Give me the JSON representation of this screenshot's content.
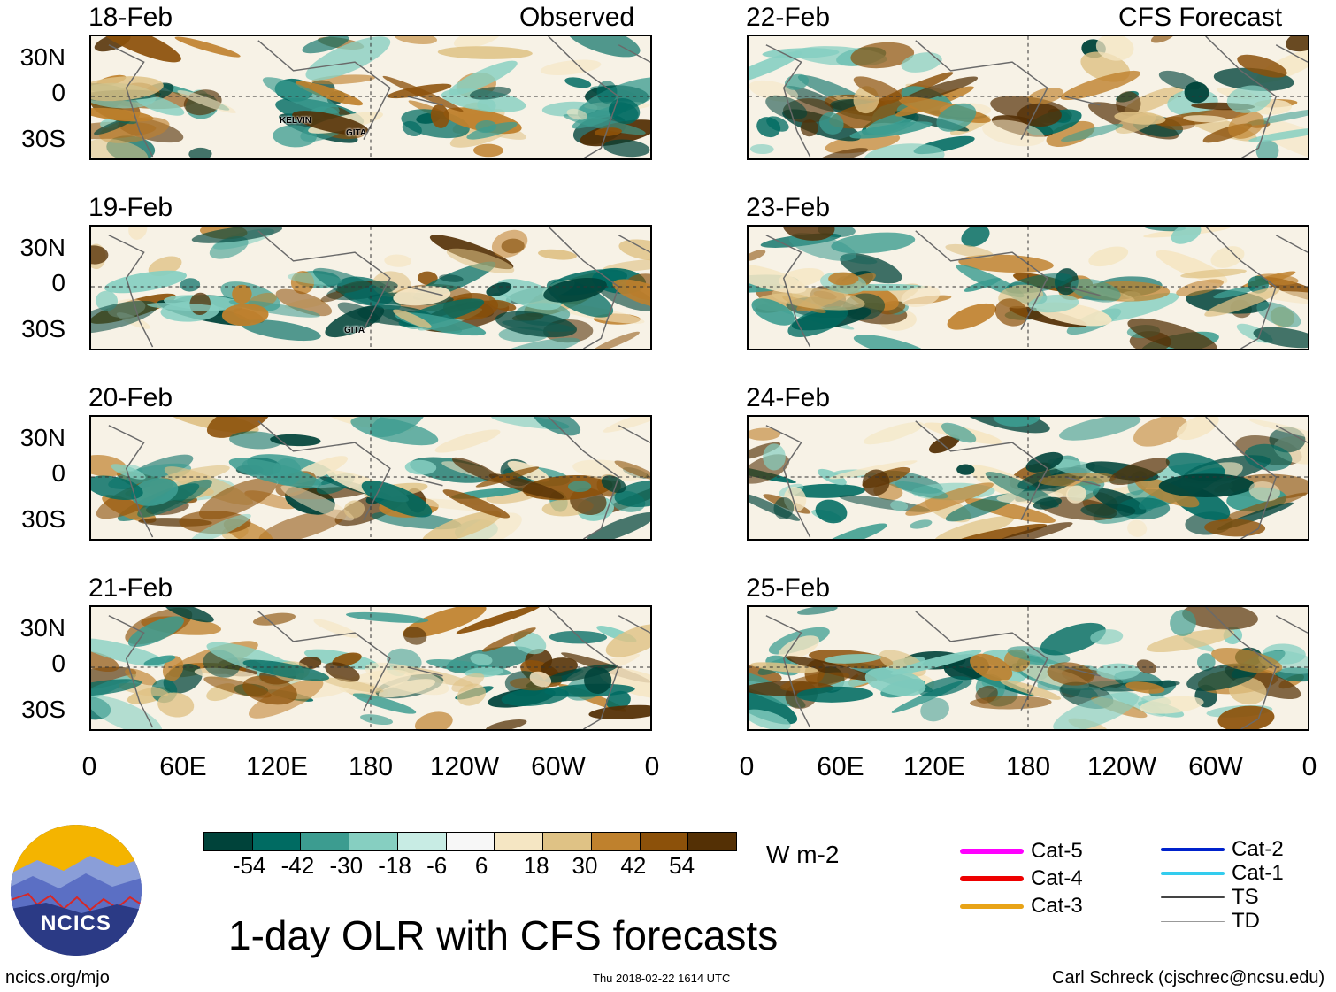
{
  "headers": {
    "left": "Observed",
    "right": "CFS Forecast"
  },
  "panels": [
    {
      "date": "18-Feb",
      "storms": [
        "KELVIN",
        "GITA"
      ]
    },
    {
      "date": "19-Feb",
      "storms": [
        "GITA"
      ]
    },
    {
      "date": "20-Feb",
      "storms": []
    },
    {
      "date": "21-Feb",
      "storms": []
    },
    {
      "date": "22-Feb",
      "storms": []
    },
    {
      "date": "23-Feb",
      "storms": []
    },
    {
      "date": "24-Feb",
      "storms": []
    },
    {
      "date": "25-Feb",
      "storms": []
    }
  ],
  "y_labels": [
    "30N",
    "0",
    "30S"
  ],
  "x_labels": [
    "0",
    "60E",
    "120E",
    "180",
    "120W",
    "60W",
    "0"
  ],
  "colorbar": {
    "colors": [
      "#00433a",
      "#006b62",
      "#3c9c90",
      "#86cfc1",
      "#c8ece4",
      "#f7f7f7",
      "#f5e6c3",
      "#dfc285",
      "#bf812d",
      "#8c510a",
      "#543005"
    ],
    "ticks": [
      "-54",
      "-42",
      "-30",
      "-18",
      "-6",
      "6",
      "18",
      "30",
      "42",
      "54"
    ],
    "units": "W m-2"
  },
  "title": "1-day OLR with CFS forecasts",
  "logo_text": "NCICS",
  "website": "ncics.org/mjo",
  "timestamp": "Thu 2018-02-22 1614 UTC",
  "credit": "Carl Schreck (cjschrec@ncsu.edu)",
  "legend": [
    {
      "label": "Cat-5",
      "color": "#ff00ff"
    },
    {
      "label": "Cat-4",
      "color": "#ee0000"
    },
    {
      "label": "Cat-3",
      "color": "#e8a317"
    },
    {
      "label": "Cat-2",
      "color": "#0022cc"
    },
    {
      "label": "Cat-1",
      "color": "#33ccee"
    },
    {
      "label": "TS",
      "color": "#444444"
    },
    {
      "label": "TD",
      "color": "#999999"
    }
  ]
}
